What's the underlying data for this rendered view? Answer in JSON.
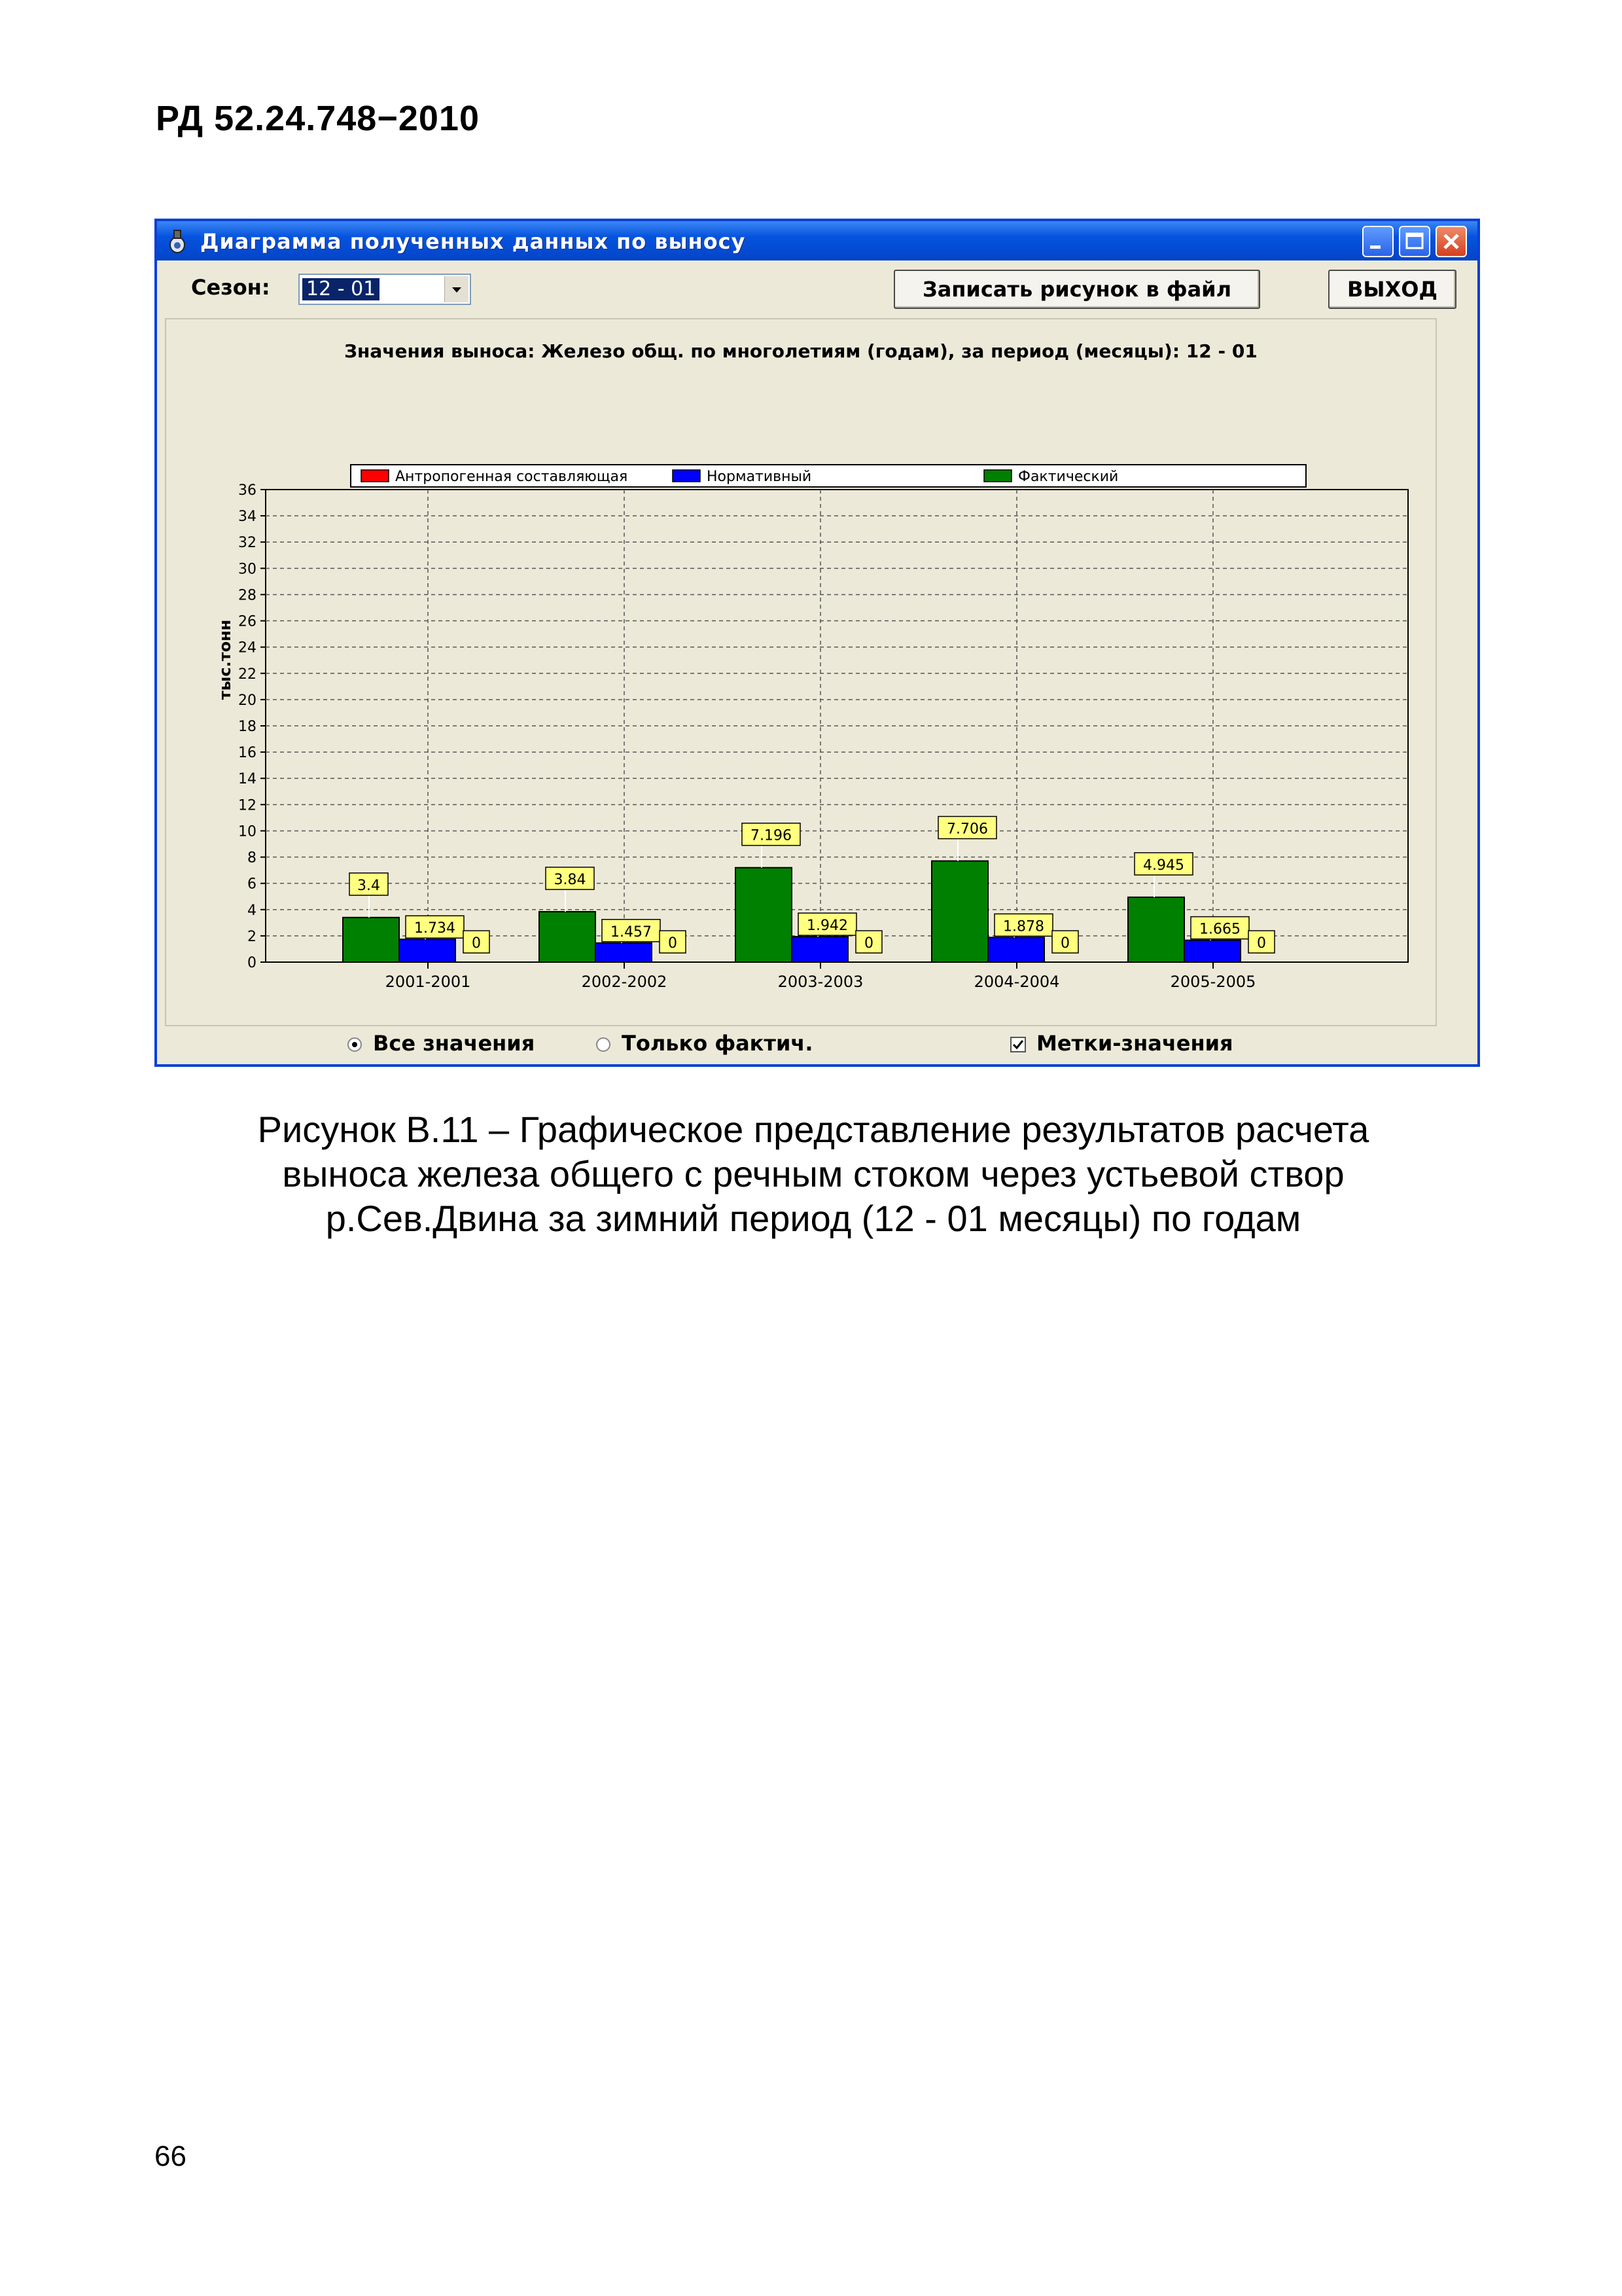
{
  "document": {
    "header": "РД 52.24.748−2010",
    "page_number": "66",
    "caption_lines": [
      "Рисунок В.11 – Графическое представление результатов расчета",
      "выноса железа общего с речным стоком через устьевой створ",
      "р.Сев.Двина за зимний период (12 - 01 месяцы) по годам"
    ]
  },
  "window": {
    "title": "Диаграмма полученных данных по выносу",
    "icon": "app-icon",
    "controls": [
      "minimize-icon",
      "maximize-icon",
      "close-icon"
    ]
  },
  "toolbar": {
    "season_label": "Сезон:",
    "season_value": "12 - 01",
    "save_button": "Записать рисунок в файл",
    "exit_button": "ВЫХОД"
  },
  "options": {
    "all_values": "Все значения",
    "only_actual": "Только фактич.",
    "value_labels": "Метки-значения",
    "all_values_selected": true,
    "only_actual_selected": false,
    "value_labels_checked": true
  },
  "chart_data": {
    "type": "bar",
    "title": "Значения выноса: Железо общ. по многолетиям (годам), за период (месяцы): 12 - 01",
    "ylabel": "тыс.тонн",
    "xlabel": "",
    "ylim": [
      0,
      36
    ],
    "yticks": [
      "0",
      "2",
      "4",
      "6",
      "8",
      "10",
      "12",
      "14",
      "16",
      "18",
      "20",
      "22",
      "24",
      "26",
      "28",
      "30",
      "32",
      "34",
      "36"
    ],
    "grid": true,
    "legend_position": "top",
    "categories": [
      "2001-2001",
      "2002-2002",
      "2003-2003",
      "2004-2004",
      "2005-2005"
    ],
    "series": [
      {
        "name": "Фактический",
        "color": "#008000",
        "values": [
          3.4,
          3.84,
          7.196,
          7.706,
          4.945
        ],
        "labels": [
          "3.4",
          "3.84",
          "7.196",
          "7.706",
          "4.945"
        ]
      },
      {
        "name": "Нормативный",
        "color": "#0000ff",
        "values": [
          1.734,
          1.457,
          1.942,
          1.878,
          1.665
        ],
        "labels": [
          "1.734",
          "1.457",
          "1.942",
          "1.878",
          "1.665"
        ]
      },
      {
        "name": "Антропогенная составляющая",
        "color": "#ff0000",
        "values": [
          0,
          0,
          0,
          0,
          0
        ],
        "labels": [
          "0",
          "0",
          "0",
          "0",
          "0"
        ]
      }
    ],
    "legend_order": [
      "Антропогенная составляющая",
      "Нормативный",
      "Фактический"
    ]
  }
}
